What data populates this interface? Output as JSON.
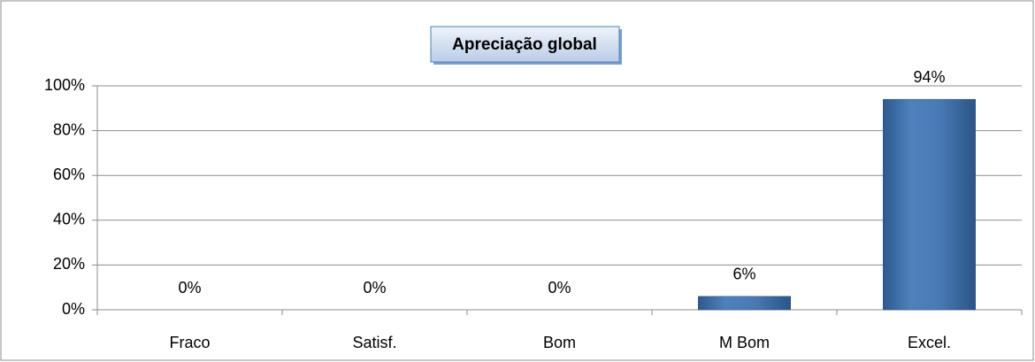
{
  "chart_data": {
    "type": "bar",
    "title": "Apreciação global",
    "categories": [
      "Fraco",
      "Satisf.",
      "Bom",
      "M Bom",
      "Excel."
    ],
    "values": [
      0,
      0,
      0,
      6,
      94
    ],
    "value_labels": [
      "0%",
      "0%",
      "0%",
      "6%",
      "94%"
    ],
    "color": "#4f81bd",
    "ylim": [
      0,
      100
    ],
    "yticks": [
      {
        "value": 0,
        "label": "0%"
      },
      {
        "value": 20,
        "label": "20%"
      },
      {
        "value": 40,
        "label": "40%"
      },
      {
        "value": 60,
        "label": "60%"
      },
      {
        "value": 80,
        "label": "80%"
      },
      {
        "value": 100,
        "label": "100%"
      }
    ],
    "grid": true
  }
}
